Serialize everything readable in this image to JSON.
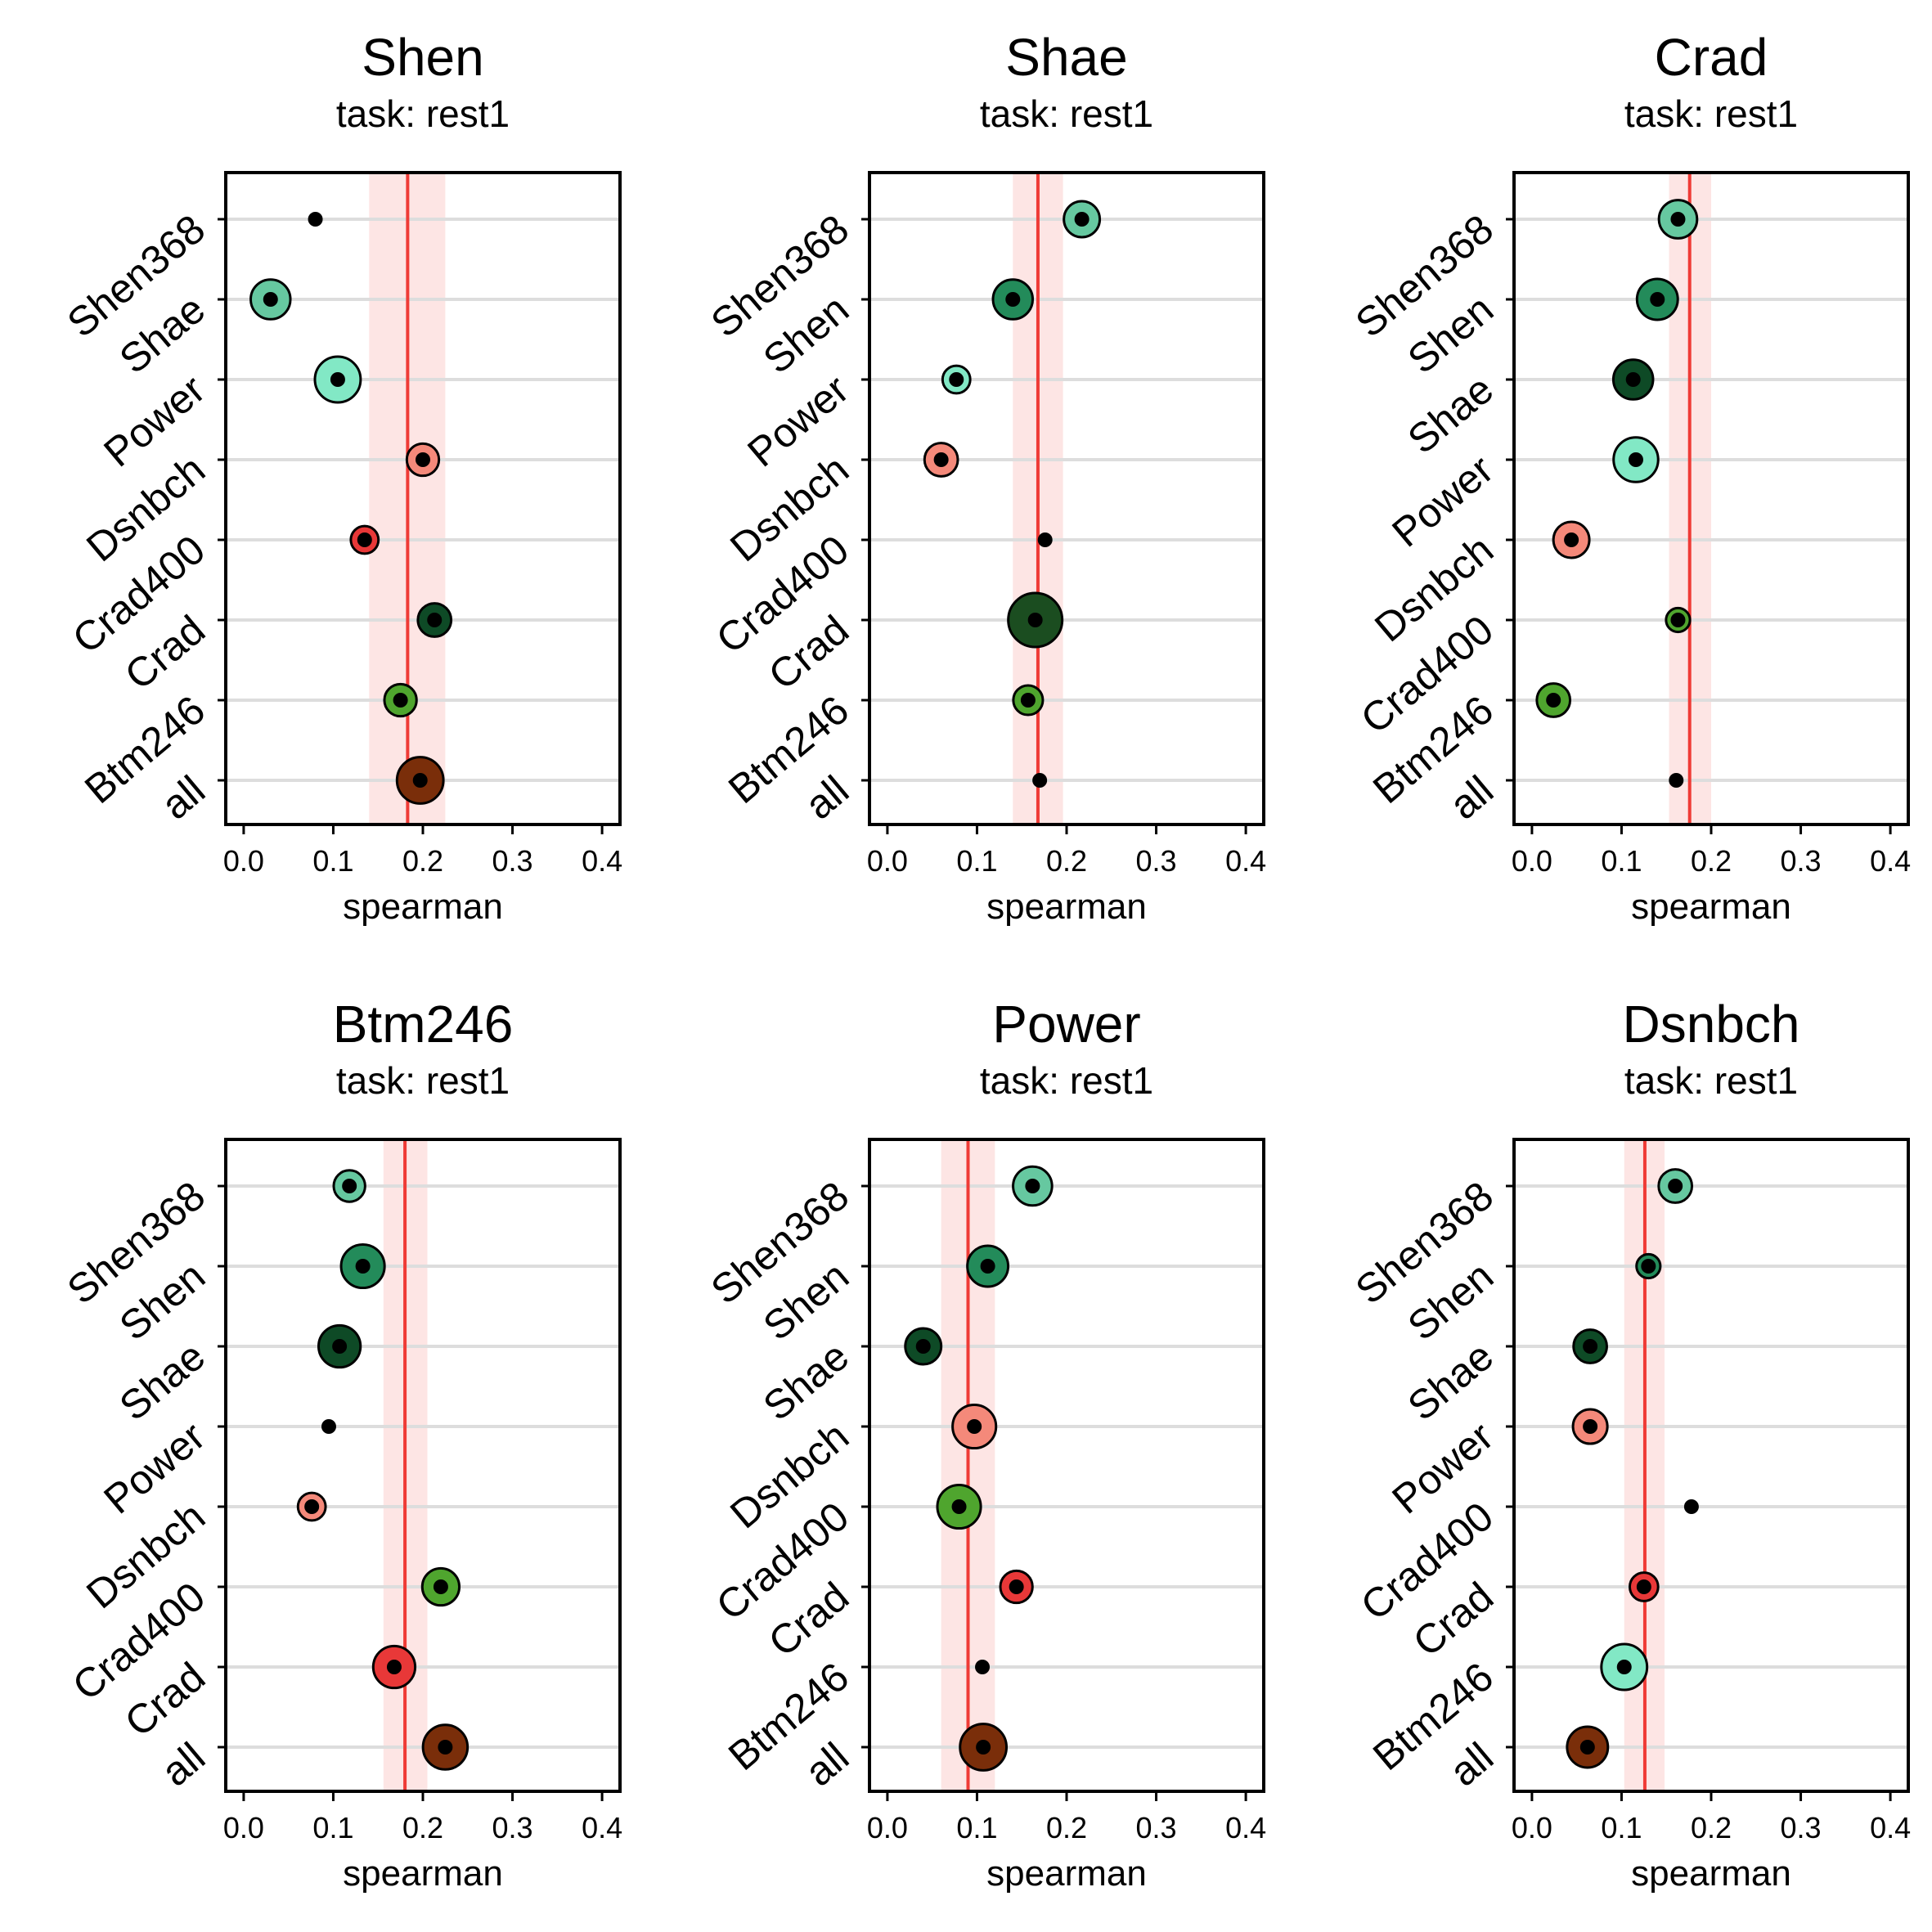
{
  "figure": {
    "background": "#ffffff"
  },
  "style": {
    "grid_color": "#dddddd",
    "ref_line_color": "#ef3b36",
    "ref_band_color": "#fde5e4",
    "dot_color": "#000000",
    "frame_color": "#000000"
  },
  "atlas_colors": {
    "Shen368": "#66c8a0",
    "Shen": "#238b5a",
    "Shae": "#0e4a26",
    "Power": "#82e8c5",
    "Dsnbch": "#f4897a",
    "Crad400": "#4fa52e",
    "Crad": "#e83838",
    "Btm246": "#4fa52e",
    "all": "#7a2e0a"
  },
  "chart_data": [
    {
      "type": "scatter",
      "title": "Shen",
      "subtitle": "task: rest1",
      "xlabel": "spearman",
      "xlim": [
        -0.02,
        0.42
      ],
      "xticks": [
        0.0,
        0.1,
        0.2,
        0.3,
        0.4
      ],
      "xtick_labels": [
        "0.0",
        "0.1",
        "0.2",
        "0.3",
        "0.4"
      ],
      "ref_value": 0.183,
      "ref_band": [
        0.14,
        0.225
      ],
      "categories": [
        "Shen368",
        "Shae",
        "Power",
        "Dsnbch",
        "Crad400",
        "Crad",
        "Btm246",
        "all"
      ],
      "points": [
        {
          "label": "Shen368",
          "value": 0.08,
          "size": 0.0,
          "color": "#66c8a0"
        },
        {
          "label": "Shae",
          "value": 0.03,
          "size": 0.62,
          "color": "#66c8a0"
        },
        {
          "label": "Power",
          "value": 0.105,
          "size": 0.78,
          "color": "#82e8c5"
        },
        {
          "label": "Dsnbch",
          "value": 0.2,
          "size": 0.42,
          "color": "#f4897a"
        },
        {
          "label": "Crad400",
          "value": 0.135,
          "size": 0.3,
          "color": "#e83838"
        },
        {
          "label": "Crad",
          "value": 0.213,
          "size": 0.45,
          "color": "#0e4a26"
        },
        {
          "label": "Btm246",
          "value": 0.175,
          "size": 0.42,
          "color": "#4fa52e"
        },
        {
          "label": "all",
          "value": 0.197,
          "size": 0.8,
          "color": "#7a2e0a"
        }
      ]
    },
    {
      "type": "scatter",
      "title": "Shae",
      "subtitle": "task: rest1",
      "xlabel": "spearman",
      "xlim": [
        -0.02,
        0.42
      ],
      "xticks": [
        0.0,
        0.1,
        0.2,
        0.3,
        0.4
      ],
      "xtick_labels": [
        "0.0",
        "0.1",
        "0.2",
        "0.3",
        "0.4"
      ],
      "ref_value": 0.168,
      "ref_band": [
        0.14,
        0.196
      ],
      "categories": [
        "Shen368",
        "Shen",
        "Power",
        "Dsnbch",
        "Crad400",
        "Crad",
        "Btm246",
        "all"
      ],
      "points": [
        {
          "label": "Shen368",
          "value": 0.217,
          "size": 0.52,
          "color": "#66c8a0"
        },
        {
          "label": "Shen",
          "value": 0.14,
          "size": 0.62,
          "color": "#238b5a"
        },
        {
          "label": "Power",
          "value": 0.077,
          "size": 0.3,
          "color": "#82e8c5"
        },
        {
          "label": "Dsnbch",
          "value": 0.06,
          "size": 0.45,
          "color": "#f4897a"
        },
        {
          "label": "Crad400",
          "value": 0.176,
          "size": 0.0,
          "color": "#4fa52e"
        },
        {
          "label": "Crad",
          "value": 0.165,
          "size": 1.0,
          "color": "#1b4d20"
        },
        {
          "label": "Btm246",
          "value": 0.157,
          "size": 0.35,
          "color": "#4fa52e"
        },
        {
          "label": "all",
          "value": 0.17,
          "size": 0.0,
          "color": "#7a2e0a"
        }
      ]
    },
    {
      "type": "scatter",
      "title": "Crad",
      "subtitle": "task: rest1",
      "xlabel": "spearman",
      "xlim": [
        -0.02,
        0.42
      ],
      "xticks": [
        0.0,
        0.1,
        0.2,
        0.3,
        0.4
      ],
      "xtick_labels": [
        "0.0",
        "0.1",
        "0.2",
        "0.3",
        "0.4"
      ],
      "ref_value": 0.176,
      "ref_band": [
        0.153,
        0.2
      ],
      "categories": [
        "Shen368",
        "Shen",
        "Shae",
        "Power",
        "Dsnbch",
        "Crad400",
        "Btm246",
        "all"
      ],
      "points": [
        {
          "label": "Shen368",
          "value": 0.163,
          "size": 0.58,
          "color": "#66c8a0"
        },
        {
          "label": "Shen",
          "value": 0.14,
          "size": 0.65,
          "color": "#238b5a"
        },
        {
          "label": "Shae",
          "value": 0.113,
          "size": 0.62,
          "color": "#0e4a26"
        },
        {
          "label": "Power",
          "value": 0.116,
          "size": 0.75,
          "color": "#82e8c5"
        },
        {
          "label": "Dsnbch",
          "value": 0.044,
          "size": 0.52,
          "color": "#f4897a"
        },
        {
          "label": "Crad400",
          "value": 0.163,
          "size": 0.2,
          "color": "#4fa52e"
        },
        {
          "label": "Btm246",
          "value": 0.024,
          "size": 0.45,
          "color": "#4fa52e"
        },
        {
          "label": "all",
          "value": 0.161,
          "size": 0.0,
          "color": "#7a2e0a"
        }
      ]
    },
    {
      "type": "scatter",
      "title": "Btm246",
      "subtitle": "task: rest1",
      "xlabel": "spearman",
      "xlim": [
        -0.02,
        0.42
      ],
      "xticks": [
        0.0,
        0.1,
        0.2,
        0.3,
        0.4
      ],
      "xtick_labels": [
        "0.0",
        "0.1",
        "0.2",
        "0.3",
        "0.4"
      ],
      "ref_value": 0.18,
      "ref_band": [
        0.156,
        0.205
      ],
      "categories": [
        "Shen368",
        "Shen",
        "Shae",
        "Power",
        "Dsnbch",
        "Crad400",
        "Crad",
        "all"
      ],
      "points": [
        {
          "label": "Shen368",
          "value": 0.118,
          "size": 0.4,
          "color": "#66c8a0"
        },
        {
          "label": "Shen",
          "value": 0.133,
          "size": 0.72,
          "color": "#238b5a"
        },
        {
          "label": "Shae",
          "value": 0.107,
          "size": 0.68,
          "color": "#0e4a26"
        },
        {
          "label": "Power",
          "value": 0.095,
          "size": 0.0,
          "color": "#82e8c5"
        },
        {
          "label": "Dsnbch",
          "value": 0.076,
          "size": 0.3,
          "color": "#f4897a"
        },
        {
          "label": "Crad400",
          "value": 0.22,
          "size": 0.55,
          "color": "#4fa52e"
        },
        {
          "label": "Crad",
          "value": 0.168,
          "size": 0.68,
          "color": "#e83838"
        },
        {
          "label": "all",
          "value": 0.225,
          "size": 0.75,
          "color": "#7a2e0a"
        }
      ]
    },
    {
      "type": "scatter",
      "title": "Power",
      "subtitle": "task: rest1",
      "xlabel": "spearman",
      "xlim": [
        -0.02,
        0.42
      ],
      "xticks": [
        0.0,
        0.1,
        0.2,
        0.3,
        0.4
      ],
      "xtick_labels": [
        "0.0",
        "0.1",
        "0.2",
        "0.3",
        "0.4"
      ],
      "ref_value": 0.09,
      "ref_band": [
        0.06,
        0.12
      ],
      "categories": [
        "Shen368",
        "Shen",
        "Shae",
        "Dsnbch",
        "Crad400",
        "Crad",
        "Btm246",
        "all"
      ],
      "points": [
        {
          "label": "Shen368",
          "value": 0.162,
          "size": 0.6,
          "color": "#66c8a0"
        },
        {
          "label": "Shen",
          "value": 0.112,
          "size": 0.65,
          "color": "#238b5a"
        },
        {
          "label": "Shae",
          "value": 0.04,
          "size": 0.52,
          "color": "#0e4a26"
        },
        {
          "label": "Dsnbch",
          "value": 0.097,
          "size": 0.72,
          "color": "#f4897a"
        },
        {
          "label": "Crad400",
          "value": 0.08,
          "size": 0.72,
          "color": "#4fa52e"
        },
        {
          "label": "Crad",
          "value": 0.144,
          "size": 0.42,
          "color": "#e83838"
        },
        {
          "label": "Btm246",
          "value": 0.106,
          "size": 0.0,
          "color": "#4fa52e"
        },
        {
          "label": "all",
          "value": 0.107,
          "size": 0.8,
          "color": "#7a2e0a"
        }
      ]
    },
    {
      "type": "scatter",
      "title": "Dsnbch",
      "subtitle": "task: rest1",
      "xlabel": "spearman",
      "xlim": [
        -0.02,
        0.42
      ],
      "xticks": [
        0.0,
        0.1,
        0.2,
        0.3,
        0.4
      ],
      "xtick_labels": [
        "0.0",
        "0.1",
        "0.2",
        "0.3",
        "0.4"
      ],
      "ref_value": 0.126,
      "ref_band": [
        0.103,
        0.148
      ],
      "categories": [
        "Shen368",
        "Shen",
        "Shae",
        "Power",
        "Crad400",
        "Crad",
        "Btm246",
        "all"
      ],
      "points": [
        {
          "label": "Shen368",
          "value": 0.16,
          "size": 0.45,
          "color": "#66c8a0"
        },
        {
          "label": "Shen",
          "value": 0.13,
          "size": 0.2,
          "color": "#238b5a"
        },
        {
          "label": "Shae",
          "value": 0.065,
          "size": 0.45,
          "color": "#0e4a26"
        },
        {
          "label": "Power",
          "value": 0.065,
          "size": 0.48,
          "color": "#f4897a"
        },
        {
          "label": "Crad400",
          "value": 0.178,
          "size": 0.0,
          "color": "#4fa52e"
        },
        {
          "label": "Crad",
          "value": 0.125,
          "size": 0.32,
          "color": "#e83838"
        },
        {
          "label": "Btm246",
          "value": 0.103,
          "size": 0.78,
          "color": "#82e8c5"
        },
        {
          "label": "all",
          "value": 0.062,
          "size": 0.65,
          "color": "#7a2e0a"
        }
      ]
    }
  ]
}
